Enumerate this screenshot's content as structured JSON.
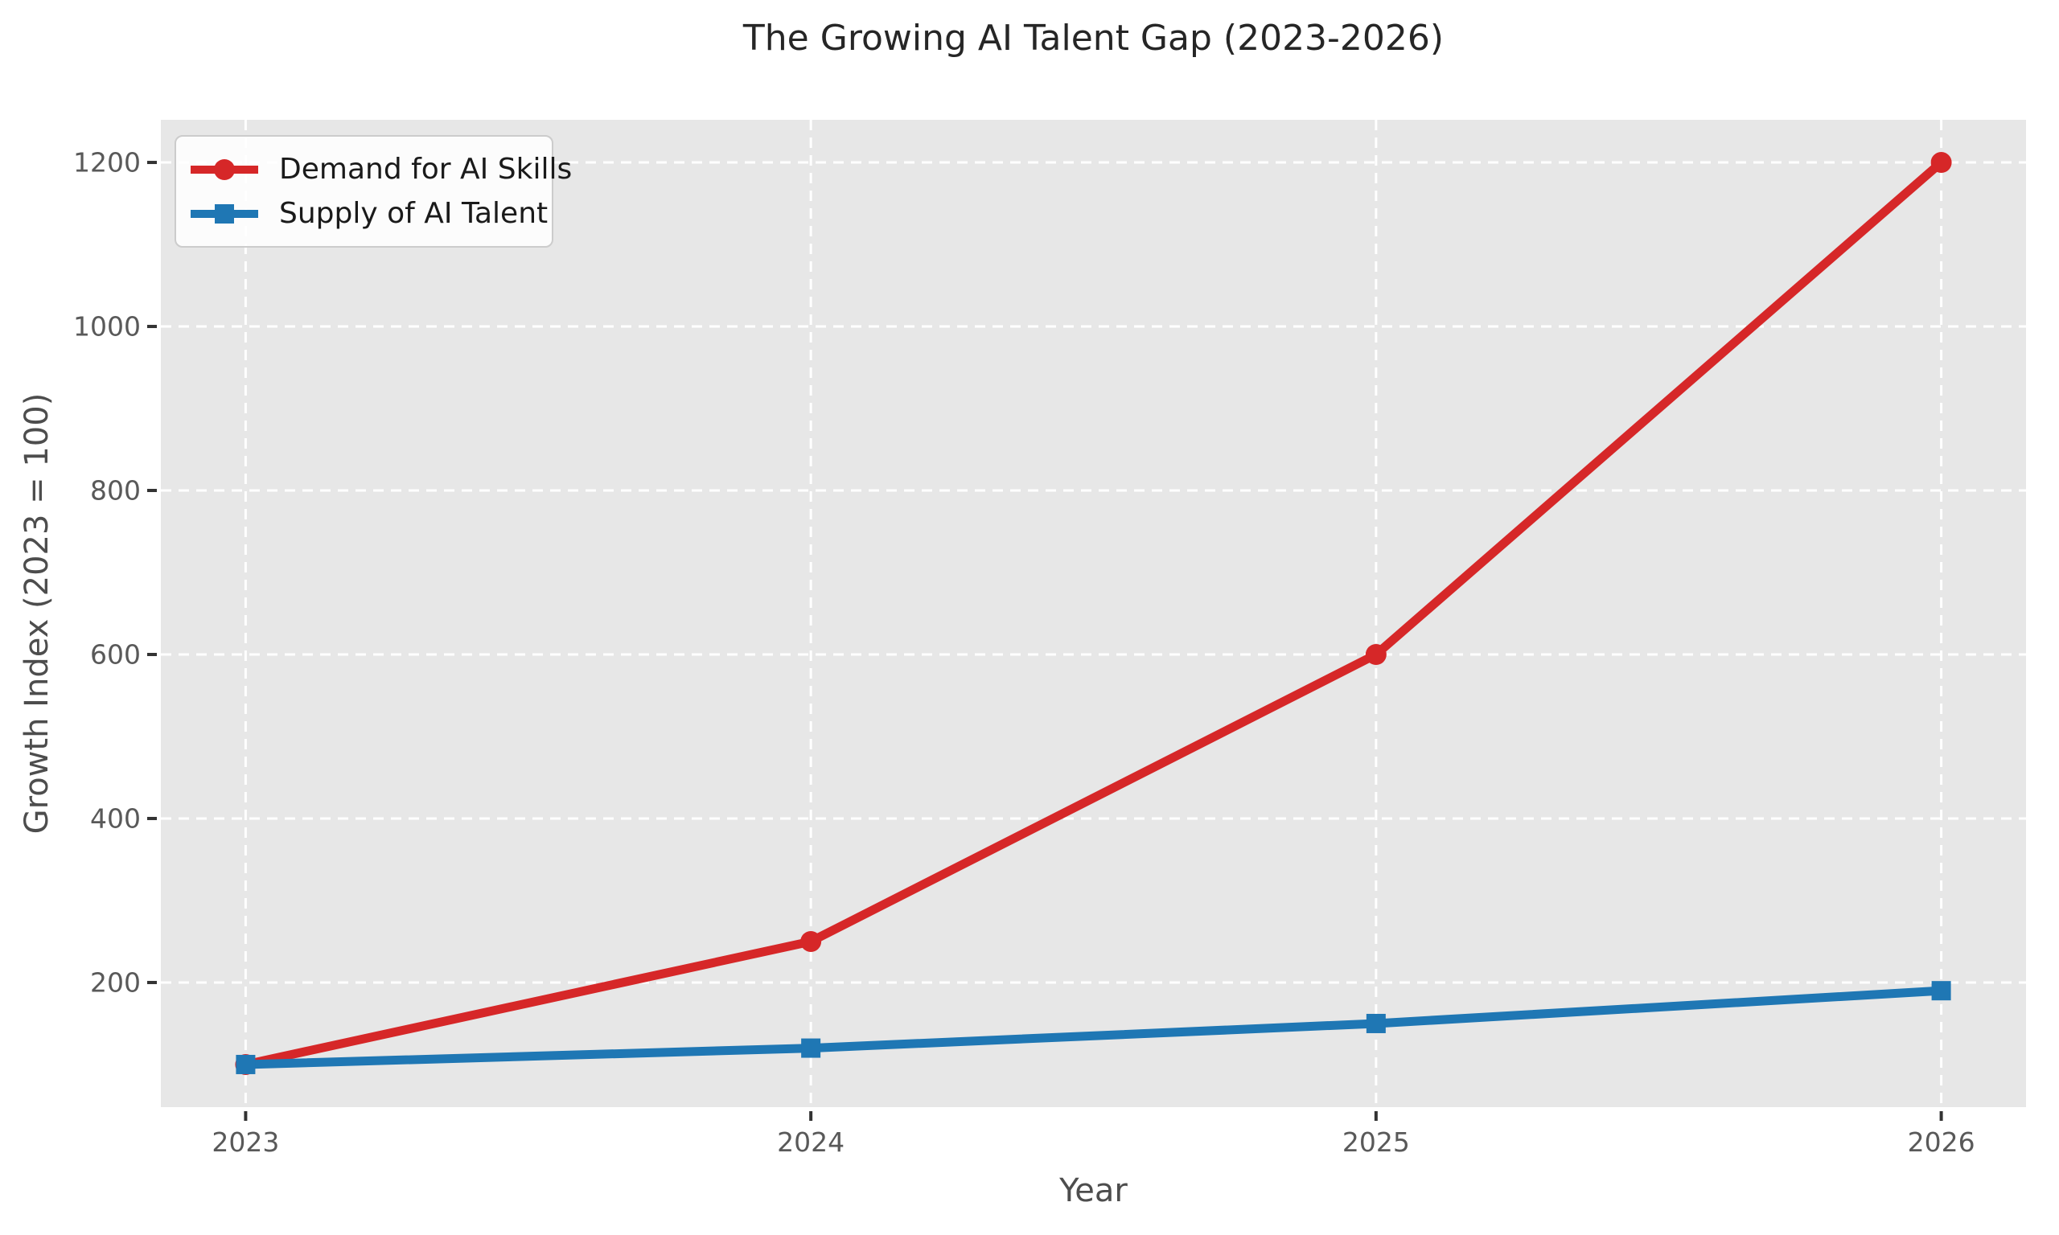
{
  "chart_data": {
    "type": "line",
    "title": "The Growing AI Talent Gap (2023-2026)",
    "xlabel": "Year",
    "ylabel": "Growth Index (2023 = 100)",
    "x": [
      2023,
      2024,
      2025,
      2026
    ],
    "series": [
      {
        "name": "Demand for AI Skills",
        "values": [
          100,
          250,
          600,
          1200
        ],
        "color": "#d62728",
        "marker": "circle",
        "line_width": 11
      },
      {
        "name": "Supply of AI Talent",
        "values": [
          100,
          120,
          150,
          190
        ],
        "color": "#1f77b4",
        "marker": "square",
        "line_width": 11
      }
    ],
    "xticks": {
      "values": [
        2023,
        2024,
        2025,
        2026
      ],
      "labels": [
        "2023",
        "2024",
        "2025",
        "2026"
      ]
    },
    "yticks": {
      "values": [
        200,
        400,
        600,
        800,
        1000,
        1200
      ],
      "labels": [
        "200",
        "400",
        "600",
        "800",
        "1000",
        "1200"
      ]
    },
    "xlim": [
      2022.85,
      2026.15
    ],
    "ylim": [
      48,
      1252
    ],
    "grid": true,
    "grid_style": "dashed-white",
    "legend_position": "upper left",
    "colors": {
      "plot_bg": "#e7e7e7",
      "figure_bg": "#ffffff",
      "grid": "#ffffff",
      "tick_mark": "#333333",
      "tick_label": "#595959",
      "axis_label": "#4d4d4d",
      "title": "#262626",
      "legend_text": "#1a1a1a",
      "legend_border": "#cccccc"
    }
  }
}
